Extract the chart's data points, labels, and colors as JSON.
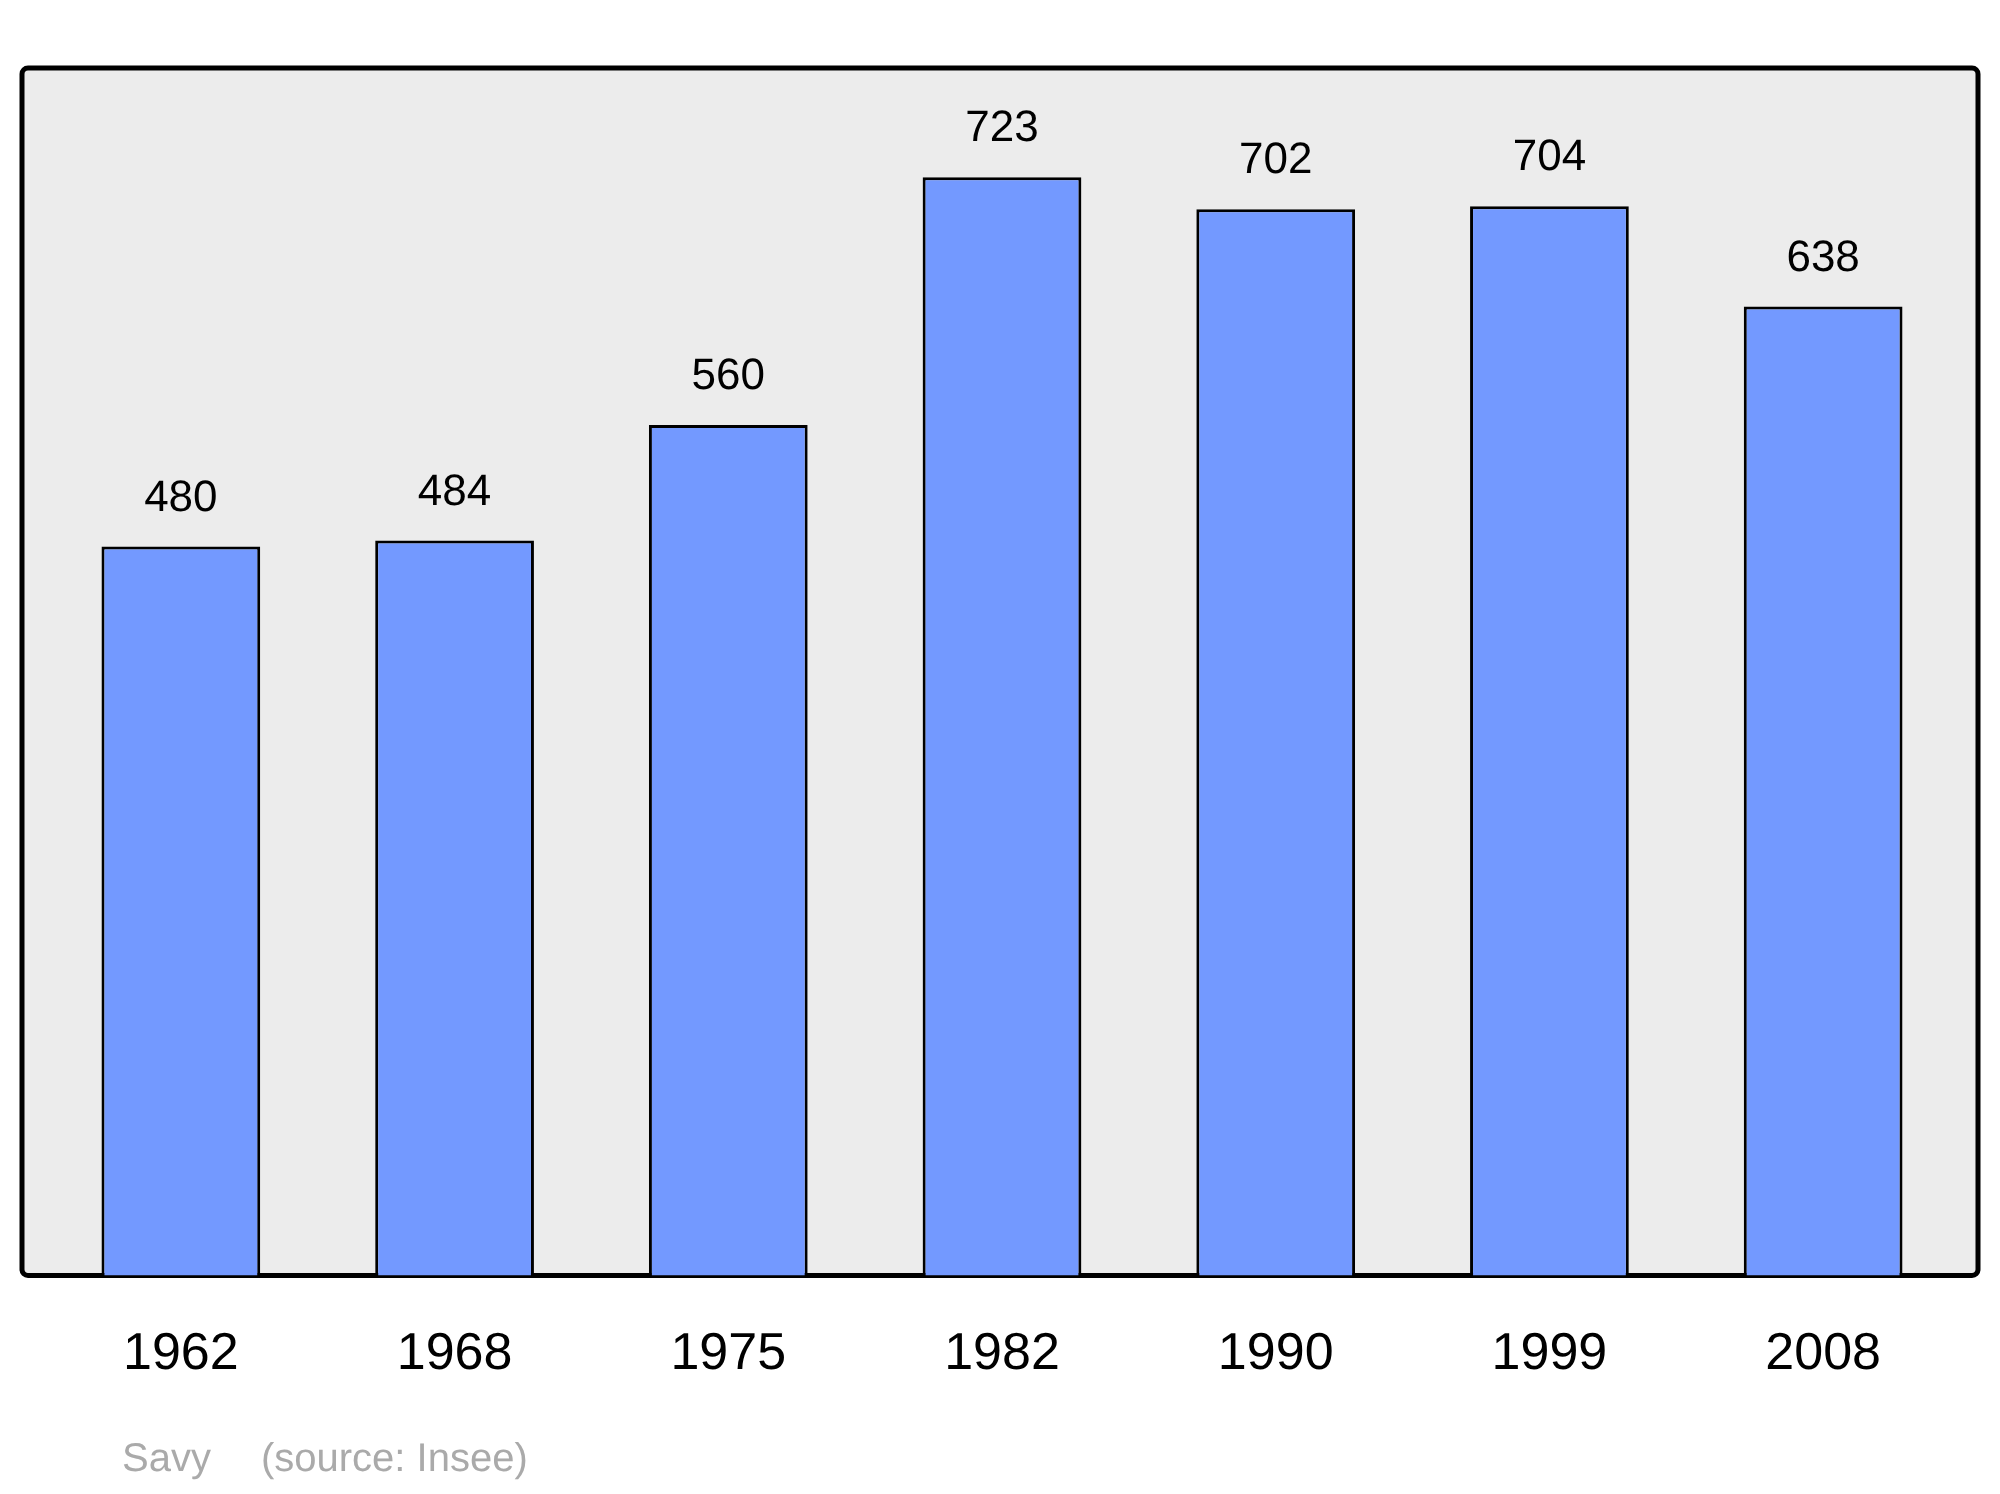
{
  "chart_data": {
    "type": "bar",
    "categories": [
      "1962",
      "1968",
      "1975",
      "1982",
      "1990",
      "1999",
      "2008"
    ],
    "values": [
      480,
      484,
      560,
      723,
      702,
      704,
      638
    ],
    "color": "#7399ff",
    "ylim": [
      0,
      795
    ],
    "data_labels": true,
    "tick_labels": "x",
    "annotations": [
      "Savy",
      "(source: Insee)"
    ]
  }
}
